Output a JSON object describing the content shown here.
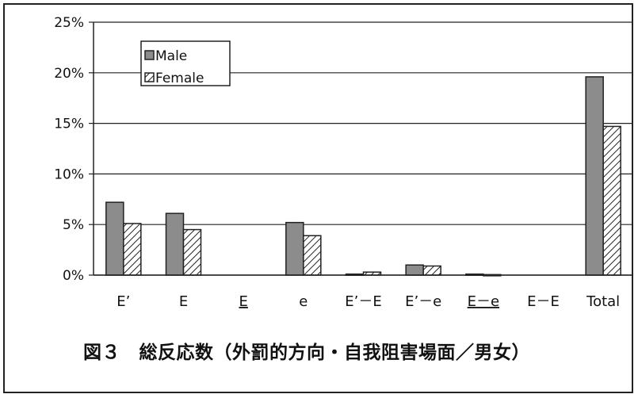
{
  "caption": "図３　総反応数（外罰的方向・自我阻害場面／男女）",
  "chart_data": {
    "type": "bar",
    "categories": [
      "E’",
      "E",
      "E",
      "e",
      "E’－E",
      "E’－e",
      "E－e",
      "E－E",
      "Total"
    ],
    "underlined_categories": [
      2,
      6
    ],
    "series": [
      {
        "name": "Male",
        "values": [
          7.2,
          6.1,
          0,
          5.2,
          0.1,
          1.0,
          0.1,
          0,
          19.6
        ],
        "color": "#8c8c8c"
      },
      {
        "name": "Female",
        "values": [
          5.1,
          4.5,
          0,
          3.9,
          0.3,
          0.9,
          0.05,
          0,
          14.7
        ],
        "color": "hatch"
      }
    ],
    "yticks": [
      "0%",
      "5%",
      "10%",
      "15%",
      "20%",
      "25%"
    ],
    "ylim": [
      0,
      25
    ],
    "grid": true,
    "legend": "top-left"
  }
}
